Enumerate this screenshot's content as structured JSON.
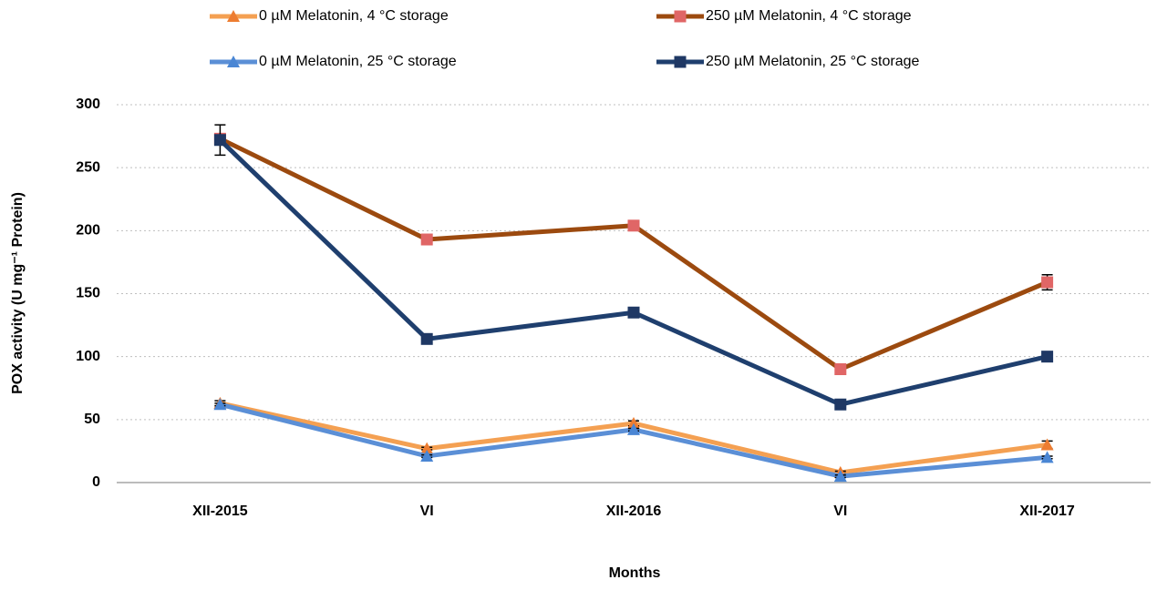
{
  "chart_data": {
    "type": "line",
    "x_label": "Months",
    "y_label": "POX activity  (U mg⁻¹ Protein)",
    "categories": [
      "XII-2015",
      "VI",
      "XII-2016",
      "VI",
      "XII-2017"
    ],
    "series": [
      {
        "name": "0 µM Melatonin, 4 °C storage",
        "color": "#f4a052",
        "marker_color": "#ed7d31",
        "marker": "triangle",
        "values": [
          63,
          27,
          47,
          8,
          30
        ],
        "errors": [
          2,
          1,
          2,
          1,
          3
        ]
      },
      {
        "name": "250 µM Melatonin, 4 °C storage",
        "color": "#9c4a0f",
        "marker_color": "#e06666",
        "marker": "square",
        "values": [
          273,
          193,
          204,
          90,
          159
        ],
        "errors": [
          3,
          2,
          2,
          2,
          6
        ]
      },
      {
        "name": "0 µM Melatonin, 25 °C storage",
        "color": "#5b8fd6",
        "marker_color": "#4a86d4",
        "marker": "triangle",
        "values": [
          62,
          21,
          42,
          5,
          20
        ],
        "errors": [
          1,
          1,
          1,
          1,
          1
        ]
      },
      {
        "name": "250 µM Melatonin, 25 °C storage",
        "color": "#1f3f6e",
        "marker_color": "#1f3864",
        "marker": "square",
        "values": [
          272,
          114,
          135,
          62,
          100
        ],
        "errors": [
          12,
          2,
          2,
          2,
          2
        ]
      }
    ],
    "ylim": [
      0,
      300
    ],
    "yticks": [
      0,
      50,
      100,
      150,
      200,
      250,
      300
    ],
    "grid": true
  }
}
